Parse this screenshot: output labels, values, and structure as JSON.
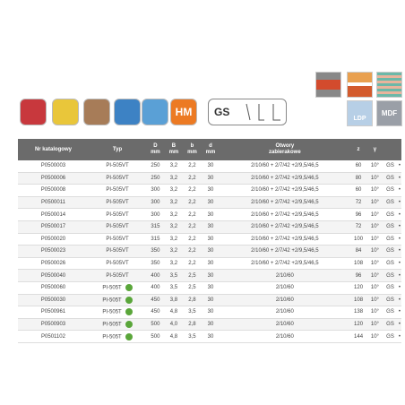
{
  "icons": {
    "hm": "HM",
    "gs": "GS",
    "ldp": "LDP",
    "mdf": "MDF"
  },
  "table": {
    "header": [
      "Nr katalogowy",
      "Typ",
      "D",
      "B",
      "b",
      "d",
      "Otwory",
      "z",
      "γ"
    ],
    "units": [
      "mm",
      "mm",
      "mm",
      "mm"
    ],
    "header_sub": "zabierakowe",
    "rows": [
      {
        "cells": [
          "P0500003",
          "PI-505VT",
          "250",
          "3,2",
          "2,2",
          "30",
          "2/10/60 + 2/7/42 +2/9,5/46,5",
          "60",
          "10°",
          "GS",
          "•"
        ],
        "silent": false
      },
      {
        "cells": [
          "P0500006",
          "PI-505VT",
          "250",
          "3,2",
          "2,2",
          "30",
          "2/10/60 + 2/7/42 +2/9,5/46,5",
          "80",
          "10°",
          "GS",
          "•"
        ],
        "silent": false
      },
      {
        "cells": [
          "P0500008",
          "PI-505VT",
          "300",
          "3,2",
          "2,2",
          "30",
          "2/10/60 + 2/7/42 +2/9,5/46,5",
          "60",
          "10°",
          "GS",
          "•"
        ],
        "silent": false
      },
      {
        "cells": [
          "P0500011",
          "PI-505VT",
          "300",
          "3,2",
          "2,2",
          "30",
          "2/10/60 + 2/7/42 +2/9,5/46,5",
          "72",
          "10°",
          "GS",
          "•"
        ],
        "silent": false
      },
      {
        "cells": [
          "P0500014",
          "PI-505VT",
          "300",
          "3,2",
          "2,2",
          "30",
          "2/10/60 + 2/7/42 +2/9,5/46,5",
          "96",
          "10°",
          "GS",
          "•"
        ],
        "silent": false
      },
      {
        "cells": [
          "P0500017",
          "PI-505VT",
          "315",
          "3,2",
          "2,2",
          "30",
          "2/10/60 + 2/7/42 +2/9,5/46,5",
          "72",
          "10°",
          "GS",
          "•"
        ],
        "silent": false
      },
      {
        "cells": [
          "P0500020",
          "PI-505VT",
          "315",
          "3,2",
          "2,2",
          "30",
          "2/10/60 + 2/7/42 +2/9,5/46,5",
          "100",
          "10°",
          "GS",
          "•"
        ],
        "silent": false
      },
      {
        "cells": [
          "P0500023",
          "PI-505VT",
          "350",
          "3,2",
          "2,2",
          "30",
          "2/10/60 + 2/7/42 +2/9,5/46,5",
          "84",
          "10°",
          "GS",
          "•"
        ],
        "silent": false
      },
      {
        "cells": [
          "P0500026",
          "PI-505VT",
          "350",
          "3,2",
          "2,2",
          "30",
          "2/10/60 + 2/7/42 +2/9,5/46,5",
          "108",
          "10°",
          "GS",
          "•"
        ],
        "silent": false
      },
      {
        "cells": [
          "P0500040",
          "PI-505VT",
          "400",
          "3,5",
          "2,5",
          "30",
          "2/10/60",
          "96",
          "10°",
          "GS",
          "•"
        ],
        "silent": false
      },
      {
        "cells": [
          "P0500060",
          "PI-505T",
          "400",
          "3,5",
          "2,5",
          "30",
          "2/10/60",
          "120",
          "10°",
          "GS",
          "•"
        ],
        "silent": true
      },
      {
        "cells": [
          "P0500030",
          "PI-505T",
          "450",
          "3,8",
          "2,8",
          "30",
          "2/10/60",
          "108",
          "10°",
          "GS",
          "•"
        ],
        "silent": true
      },
      {
        "cells": [
          "P0500961",
          "PI-505T",
          "450",
          "4,8",
          "3,5",
          "30",
          "2/10/60",
          "138",
          "10°",
          "GS",
          "•"
        ],
        "silent": true
      },
      {
        "cells": [
          "P0500903",
          "PI-505T",
          "500",
          "4,0",
          "2,8",
          "30",
          "2/10/60",
          "120",
          "10°",
          "GS",
          "•"
        ],
        "silent": true
      },
      {
        "cells": [
          "P0501102",
          "PI-505T",
          "500",
          "4,8",
          "3,5",
          "30",
          "2/10/60",
          "144",
          "10°",
          "GS",
          "•"
        ],
        "silent": true
      }
    ]
  }
}
